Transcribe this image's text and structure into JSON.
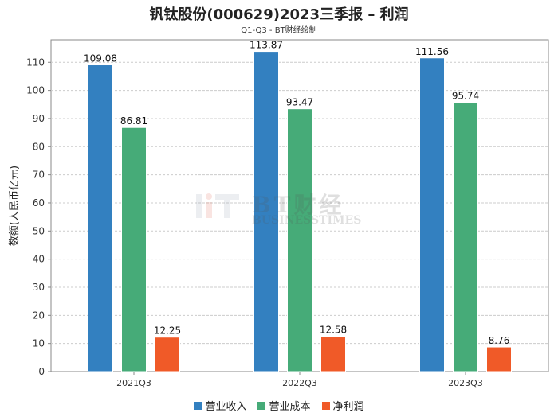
{
  "title": "钒钛股份(000629)2023三季报 – 利润",
  "subtitle": "Q1-Q3 - BT财经绘制",
  "watermark": {
    "big": "BT财经",
    "small": "BUSINESSTIMES"
  },
  "colors": {
    "revenue": "#3380c0",
    "cost": "#46ab78",
    "profit": "#f05a28",
    "grid": "#cccccc",
    "axis": "#888888"
  },
  "chart_data": {
    "type": "bar",
    "title": "钒钛股份(000629)2023三季报 – 利润",
    "subtitle": "Q1-Q3 - BT财经绘制",
    "xlabel": "",
    "ylabel": "数额(人民币亿元)",
    "ylim": [
      0,
      118
    ],
    "yticks": [
      0,
      10,
      20,
      30,
      40,
      50,
      60,
      70,
      80,
      90,
      100,
      110
    ],
    "grid": true,
    "legend_position": "bottom",
    "categories": [
      "2021Q3",
      "2022Q3",
      "2023Q3"
    ],
    "series": [
      {
        "name": "营业收入",
        "color": "#3380c0",
        "values": [
          109.08,
          113.87,
          111.56
        ],
        "labels": [
          "109.08",
          "113.87",
          "111.56"
        ]
      },
      {
        "name": "营业成本",
        "color": "#46ab78",
        "values": [
          86.81,
          93.47,
          95.74
        ],
        "labels": [
          "86.81",
          "93.47",
          "95.74"
        ]
      },
      {
        "name": "净利润",
        "color": "#f05a28",
        "values": [
          12.25,
          12.58,
          8.76
        ],
        "labels": [
          "12.25",
          "12.58",
          "8.76"
        ]
      }
    ]
  }
}
